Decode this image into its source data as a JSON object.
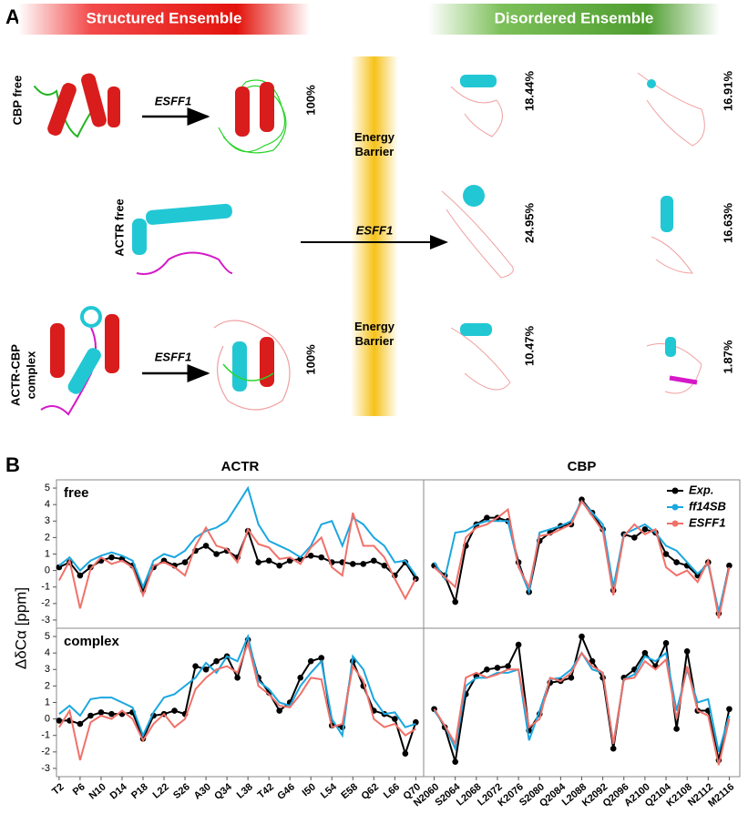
{
  "panel_a": {
    "label": "A",
    "structured_title": "Structured Ensemble",
    "disordered_title": "Disordered Ensemble",
    "barrier": [
      "Energy Barrier",
      "Energy Barrier"
    ],
    "rows": [
      {
        "label": [
          "CBP free"
        ],
        "arrow": "ESFF1",
        "percent": "100%",
        "disordered": [
          "18.44%",
          "16.91%"
        ]
      },
      {
        "label": [
          "ACTR free"
        ],
        "arrow": "ESFF1",
        "disordered": [
          "24.95%",
          "16.63%"
        ]
      },
      {
        "label": [
          "ACTR-CBP",
          "complex"
        ],
        "arrow": "ESFF1",
        "percent": "100%",
        "disordered": [
          "10.47%",
          "1.87%"
        ]
      }
    ]
  },
  "panel_b": {
    "label": "B",
    "ylabel": "ΔδCα [ppm]"
  },
  "chart_data": [
    {
      "type": "line",
      "title": "ACTR",
      "label": "free",
      "x": [
        2,
        4,
        6,
        8,
        10,
        12,
        14,
        16,
        18,
        20,
        22,
        24,
        26,
        28,
        30,
        32,
        34,
        36,
        38,
        40,
        42,
        44,
        46,
        48,
        50,
        52,
        54,
        56,
        58,
        60,
        62,
        64,
        66,
        68,
        70
      ],
      "xlim": [
        1.5,
        71.5
      ],
      "ylim": [
        -3.5,
        5.5
      ],
      "yticks": [
        -3,
        -2,
        -1,
        0,
        1,
        2,
        3,
        4,
        5
      ],
      "series": [
        {
          "color": "#000000",
          "values": [
            0.2,
            0.5,
            -0.3,
            0.2,
            0.6,
            0.8,
            0.7,
            0.3,
            -1.2,
            0.2,
            0.6,
            0.3,
            0.5,
            1.2,
            1.5,
            1.0,
            1.2,
            0.8,
            2.4,
            0.5,
            0.6,
            0.3,
            0.6,
            0.7,
            0.9,
            0.8,
            0.5,
            0.5,
            0.4,
            0.4,
            0.6,
            0.3,
            -0.3,
            0.5,
            -0.5
          ]
        },
        {
          "color": "#1aa7e0",
          "values": [
            0.3,
            0.8,
            0.0,
            0.6,
            0.9,
            1.1,
            0.9,
            0.6,
            -1.0,
            0.6,
            1.0,
            0.8,
            1.2,
            2.0,
            2.4,
            2.6,
            3.0,
            4.0,
            5.0,
            2.8,
            1.8,
            1.5,
            1.2,
            0.8,
            1.5,
            2.8,
            3.0,
            1.5,
            3.2,
            2.8,
            2.0,
            1.5,
            0.5,
            0.6,
            -0.3
          ]
        },
        {
          "color": "#f0716a",
          "values": [
            -0.6,
            0.6,
            -2.3,
            0.1,
            0.8,
            0.4,
            0.6,
            0.2,
            -1.5,
            0.3,
            0.5,
            0.2,
            -0.3,
            1.5,
            2.6,
            1.5,
            1.3,
            0.5,
            2.5,
            1.6,
            1.4,
            0.7,
            0.8,
            0.4,
            1.4,
            2.0,
            0.2,
            -0.3,
            3.5,
            1.5,
            1.5,
            0.8,
            -0.5,
            -1.7,
            -0.5
          ]
        }
      ]
    },
    {
      "type": "line",
      "title": "CBP",
      "legend": "upper right",
      "x": [
        2060,
        2062,
        2064,
        2066,
        2068,
        2070,
        2072,
        2074,
        2076,
        2078,
        2080,
        2082,
        2084,
        2086,
        2088,
        2090,
        2092,
        2094,
        2096,
        2098,
        2100,
        2102,
        2104,
        2106,
        2108,
        2110,
        2112,
        2114,
        2116
      ],
      "xlim": [
        2058,
        2118
      ],
      "ylim": [
        -3.5,
        5.5
      ],
      "series": [
        {
          "name": "Exp.",
          "color": "#000000",
          "values": [
            0.3,
            -0.3,
            -1.9,
            1.5,
            2.8,
            3.2,
            3.2,
            3.0,
            0.5,
            -1.3,
            1.8,
            2.3,
            2.7,
            2.8,
            4.3,
            3.5,
            2.5,
            -1.2,
            2.2,
            2.0,
            2.5,
            2.3,
            1.0,
            0.5,
            0.3,
            -0.3,
            0.5,
            -2.6,
            0.3
          ]
        },
        {
          "name": "ff14SB",
          "color": "#1aa7e0",
          "values": [
            0.5,
            -0.5,
            2.3,
            2.4,
            2.8,
            3.0,
            3.0,
            3.0,
            0.3,
            -1.3,
            2.3,
            2.5,
            2.7,
            3.0,
            4.2,
            3.5,
            2.8,
            -1.0,
            2.2,
            2.5,
            2.8,
            2.3,
            1.5,
            1.2,
            0.5,
            -0.2,
            0.4,
            -2.5,
            0.2
          ]
        },
        {
          "name": "ESFF1",
          "color": "#f0716a",
          "values": [
            0.2,
            -0.4,
            -1.0,
            2.0,
            2.6,
            2.8,
            3.2,
            3.7,
            0.2,
            -1.0,
            2.1,
            2.2,
            2.5,
            2.8,
            4.2,
            3.3,
            2.4,
            -1.5,
            2.1,
            2.8,
            2.2,
            2.5,
            0.2,
            -0.3,
            0.0,
            -0.7,
            0.6,
            -2.9,
            0.2
          ]
        }
      ]
    },
    {
      "type": "line",
      "label": "complex",
      "x": [
        2,
        4,
        6,
        8,
        10,
        12,
        14,
        16,
        18,
        20,
        22,
        24,
        26,
        28,
        30,
        32,
        34,
        36,
        38,
        40,
        42,
        44,
        46,
        48,
        50,
        52,
        54,
        56,
        58,
        60,
        62,
        64,
        66,
        68,
        70
      ],
      "xlim": [
        1.5,
        71.5
      ],
      "ylim": [
        -3.5,
        5.5
      ],
      "yticks": [
        -3,
        -2,
        -1,
        0,
        1,
        2,
        3,
        4,
        5
      ],
      "xticks": [
        {
          "value": 2,
          "label": "T2"
        },
        {
          "value": 6,
          "label": "P6"
        },
        {
          "value": 10,
          "label": "N10"
        },
        {
          "value": 14,
          "label": "D14"
        },
        {
          "value": 18,
          "label": "P18"
        },
        {
          "value": 22,
          "label": "L22"
        },
        {
          "value": 26,
          "label": "S26"
        },
        {
          "value": 30,
          "label": "A30"
        },
        {
          "value": 34,
          "label": "Q34"
        },
        {
          "value": 38,
          "label": "L38"
        },
        {
          "value": 42,
          "label": "T42"
        },
        {
          "value": 46,
          "label": "G46"
        },
        {
          "value": 50,
          "label": "I50"
        },
        {
          "value": 54,
          "label": "L54"
        },
        {
          "value": 58,
          "label": "E58"
        },
        {
          "value": 62,
          "label": "Q62"
        },
        {
          "value": 66,
          "label": "L66"
        },
        {
          "value": 70,
          "label": "Q70"
        }
      ],
      "series": [
        {
          "color": "#000000",
          "values": [
            -0.1,
            -0.1,
            -0.3,
            0.2,
            0.4,
            0.3,
            0.3,
            0.4,
            -1.2,
            0.2,
            0.3,
            0.5,
            0.3,
            3.2,
            3.0,
            3.5,
            3.8,
            2.5,
            4.8,
            2.5,
            1.6,
            0.5,
            1.0,
            2.5,
            3.5,
            3.7,
            -0.4,
            -0.5,
            3.5,
            2.0,
            0.5,
            0.3,
            0.0,
            -2.1,
            -0.2
          ]
        },
        {
          "color": "#1aa7e0",
          "values": [
            0.3,
            0.8,
            0.2,
            1.2,
            1.3,
            1.3,
            1.0,
            0.7,
            -1.0,
            0.4,
            1.3,
            1.5,
            2.0,
            2.5,
            3.4,
            2.8,
            3.8,
            3.5,
            5.0,
            2.3,
            1.8,
            1.0,
            0.8,
            2.0,
            2.8,
            3.5,
            0.0,
            -1.0,
            3.8,
            3.0,
            1.2,
            0.3,
            0.4,
            -0.5,
            -0.3
          ]
        },
        {
          "color": "#f0716a",
          "values": [
            -0.5,
            0.5,
            -2.5,
            -0.2,
            0.2,
            0.0,
            0.5,
            0.0,
            -1.3,
            -0.3,
            0.3,
            -0.5,
            0.0,
            1.8,
            2.5,
            3.0,
            3.2,
            2.8,
            4.6,
            2.0,
            1.5,
            0.8,
            0.7,
            1.5,
            2.5,
            2.4,
            -0.5,
            -0.3,
            3.2,
            2.3,
            0.0,
            -0.5,
            -0.3,
            -1.0,
            -0.6
          ]
        }
      ]
    },
    {
      "type": "line",
      "x": [
        2060,
        2062,
        2064,
        2066,
        2068,
        2070,
        2072,
        2074,
        2076,
        2078,
        2080,
        2082,
        2084,
        2086,
        2088,
        2090,
        2092,
        2094,
        2096,
        2098,
        2100,
        2102,
        2104,
        2106,
        2108,
        2110,
        2112,
        2114,
        2116
      ],
      "xlim": [
        2058,
        2118
      ],
      "ylim": [
        -3.5,
        5.5
      ],
      "xticks": [
        {
          "value": 2060,
          "label": "N2060"
        },
        {
          "value": 2064,
          "label": "S2064"
        },
        {
          "value": 2068,
          "label": "L2068"
        },
        {
          "value": 2072,
          "label": "L2072"
        },
        {
          "value": 2076,
          "label": "K2076"
        },
        {
          "value": 2080,
          "label": "S2080"
        },
        {
          "value": 2084,
          "label": "Q2084"
        },
        {
          "value": 2088,
          "label": "L2088"
        },
        {
          "value": 2092,
          "label": "K2092"
        },
        {
          "value": 2096,
          "label": "Q2096"
        },
        {
          "value": 2100,
          "label": "A2100"
        },
        {
          "value": 2104,
          "label": "Q2104"
        },
        {
          "value": 2108,
          "label": "K2108"
        },
        {
          "value": 2112,
          "label": "N2112"
        },
        {
          "value": 2116,
          "label": "M2116"
        }
      ],
      "series": [
        {
          "color": "#000000",
          "values": [
            0.6,
            -0.5,
            -2.6,
            1.5,
            2.6,
            3.0,
            3.1,
            3.2,
            4.5,
            -0.7,
            0.3,
            2.2,
            2.3,
            2.5,
            5.0,
            3.5,
            2.5,
            -1.8,
            2.5,
            3.0,
            4.0,
            3.2,
            4.6,
            -0.6,
            4.1,
            0.5,
            0.5,
            -2.5,
            0.6
          ]
        },
        {
          "color": "#1aa7e0",
          "values": [
            0.5,
            -0.4,
            -1.8,
            2.0,
            2.5,
            2.5,
            2.8,
            2.8,
            3.0,
            -1.3,
            0.5,
            2.4,
            2.5,
            3.0,
            4.0,
            3.0,
            2.8,
            -1.5,
            2.4,
            2.7,
            3.8,
            3.5,
            4.0,
            0.5,
            3.0,
            1.0,
            1.2,
            -2.0,
            0.2
          ]
        },
        {
          "color": "#f0716a",
          "values": [
            0.6,
            -0.4,
            -1.5,
            2.5,
            2.8,
            2.5,
            2.7,
            3.0,
            3.0,
            -0.5,
            0.0,
            2.5,
            2.3,
            2.8,
            4.0,
            3.2,
            2.8,
            -1.5,
            2.4,
            2.5,
            3.5,
            3.0,
            3.6,
            0.0,
            3.2,
            0.5,
            0.2,
            -2.8,
            0.0
          ]
        }
      ]
    }
  ]
}
